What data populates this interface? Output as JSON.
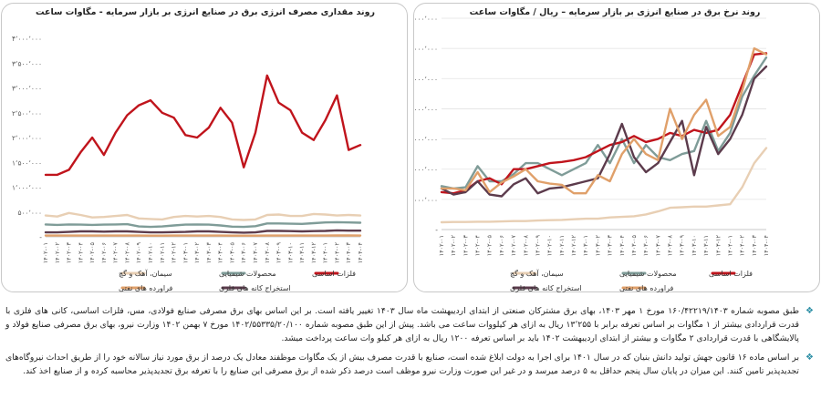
{
  "left_chart_title": "روند مقداری مصرف انرژی برق در صنایع انرژی بر بازار سرمایه  -  مگاوات ساعت",
  "right_chart_title": "روند نرخ برق در صنایع انرژی بر بازار سرمایه  – ریال / مگاوات ساعت",
  "legend_labels": {
    "cement": "سیمان، آهک و گچ",
    "chemical": "محصولات شیمیایی",
    "basic_metals": "فلزات اساسی",
    "mining": "استخراج کانه های فلزی",
    "petroleum": "فراورده های نفتی"
  },
  "colors": {
    "cement": "#e8cfb4",
    "chemical": "#7f9c98",
    "basic_metals": "#c0141c",
    "mining": "#5c3b4c",
    "petroleum": "#e0a06a"
  },
  "icons": {
    "bullet": "diamond-icon"
  },
  "bullets": [
    "طبق مصوبه شماره ۱۶۰/۴۲۲۱۹/۱۴۰۳ مورخ ۱ مهر ۱۴۰۳، بهای برق مشترکان صنعتی از ابتدای اردیبهشت ماه سال ۱۴۰۳ تغییر یافته است. بر این اساس بهای برق مصرفی صنایع فولادی، مس، فلزات اساسی، کانی های فلزی با قدرت قراردادی بیشتر از ۱ مگاوات بر اساس تعرفه برابر با ۱۳٬۲۵۵ ریال به ازای هر کیلووات ساعت می باشد. پیش از این طبق مصوبه شماره ۱۴۰۲/۵۵۳۳۵/۲۰/۱۰۰ مورخ ۷ بهمن ۱۴۰۲ وزارت نیرو، بهای برق مصرفی صنایع فولاد و پالایشگاهی با قدرت قراردادی ۲ مگاوات و بیشتر از ابتدای اردیبهشت ۱۴۰۲ باید بر اساس تعرفه ۱۲۰۰ ریال به ازای هر کیلو وات ساعت پرداخت میشد.",
    "بر اساس ماده ۱۶ قانون جهش تولید دانش بنیان که در سال ۱۴۰۱ برای اجرا به دولت ابلاغ شده است، صنایع با قدرت مصرف بیش از یک مگاوات موظفند معادل یک درصد از برق مورد نیاز سالانه خود را از طریق احداث نیروگاه‌های تجدیدپذیر تامین کنند. این میزان در پایان سال پنجم حداقل به ۵ درصد میرسد و در غیر این صورت وزارت نیرو موظف است درصد ذکر شده از برق مصرفی این صنایع را با تعرفه برق تجدیدپذیر محاسبه کرده و از صنایع اخذ کند."
  ],
  "chart_data": [
    {
      "type": "line",
      "title": "روند مقداری مصرف انرژی برق در صنایع انرژی بر بازار سرمایه  -  مگاوات ساعت",
      "x": [
        "۱۴۰۲-۰۱",
        "۱۴۰۲-۰۲",
        "۱۴۰۲-۰۳",
        "۱۴۰۲-۰۴",
        "۱۴۰۲-۰۵",
        "۱۴۰۲-۰۶",
        "۱۴۰۲-۰۷",
        "۱۴۰۲-۰۸",
        "۱۴۰۲-۰۹",
        "۱۴۰۲-۱۰",
        "۱۴۰۲-۱۱",
        "۱۴۰۲-۱۲",
        "۱۴۰۳-۰۱",
        "۱۴۰۳-۰۲",
        "۱۴۰۳-۰۳",
        "۱۴۰۳-۰۴",
        "۱۴۰۳-۰۵",
        "۱۴۰۳-۰۶",
        "۱۴۰۳-۰۷",
        "۱۴۰۳-۰۸",
        "۱۴۰۳-۰۹",
        "۱۴۰۳-۱۰",
        "۱۴۰۳-۱۱",
        "۱۴۰۳-۱۲",
        "۱۴۰۴-۰۱",
        "۱۴۰۴-۰۲",
        "۱۴۰۴-۰۳",
        "۱۴۰۴-۰۴"
      ],
      "y_ticks": [
        "-",
        "۵۰۰٬۰۰۰",
        "۱٬۰۰۰٬۰۰۰",
        "۱٬۵۰۰٬۰۰۰",
        "۲٬۰۰۰٬۰۰۰",
        "۲٬۵۰۰٬۰۰۰",
        "۳٬۰۰۰٬۰۰۰",
        "۳٬۵۰۰٬۰۰۰",
        "۴٬۰۰۰٬۰۰۰"
      ],
      "ylim": [
        0,
        4000000
      ],
      "grid": false,
      "legend_position": "bottom",
      "series": [
        {
          "key": "cement",
          "name": "سیمان، آهک و گچ",
          "values": [
            430000,
            410000,
            480000,
            440000,
            390000,
            400000,
            420000,
            440000,
            370000,
            360000,
            350000,
            400000,
            420000,
            410000,
            420000,
            400000,
            350000,
            340000,
            350000,
            440000,
            450000,
            420000,
            420000,
            460000,
            450000,
            430000,
            440000,
            430000
          ]
        },
        {
          "key": "chemical",
          "name": "محصولات شیمیایی",
          "values": [
            250000,
            240000,
            250000,
            245000,
            240000,
            245000,
            250000,
            255000,
            210000,
            200000,
            210000,
            230000,
            245000,
            250000,
            245000,
            230000,
            205000,
            200000,
            215000,
            270000,
            270000,
            265000,
            260000,
            275000,
            290000,
            295000,
            290000,
            285000
          ]
        },
        {
          "key": "basic_metals",
          "name": "فلزات اساسی",
          "values": [
            1250000,
            1250000,
            1350000,
            1700000,
            2000000,
            1650000,
            2100000,
            2450000,
            2650000,
            2750000,
            2500000,
            2400000,
            2050000,
            2000000,
            2200000,
            2600000,
            2300000,
            1400000,
            2100000,
            3250000,
            2700000,
            2550000,
            2100000,
            1950000,
            2350000,
            2850000,
            1750000,
            1850000
          ]
        },
        {
          "key": "mining",
          "name": "استخراج کانه های فلزی",
          "values": [
            90000,
            90000,
            100000,
            110000,
            110000,
            105000,
            110000,
            110000,
            100000,
            90000,
            90000,
            95000,
            100000,
            110000,
            110000,
            100000,
            90000,
            85000,
            90000,
            120000,
            120000,
            115000,
            110000,
            115000,
            120000,
            130000,
            125000,
            125000
          ]
        },
        {
          "key": "petroleum",
          "name": "فراورده های نفتی",
          "values": [
            25000,
            25000,
            25000,
            26000,
            26000,
            25000,
            25000,
            26000,
            25000,
            24000,
            24000,
            25000,
            25000,
            25000,
            25000,
            25000,
            24000,
            24000,
            24000,
            26000,
            26000,
            25000,
            25000,
            26000,
            26000,
            27000,
            27000,
            26000
          ]
        }
      ]
    },
    {
      "type": "line",
      "title": "روند نرخ برق در صنایع انرژی بر بازار سرمایه  – ریال / مگاوات ساعت",
      "x": [
        "۱۴۰۲-۰۱",
        "۱۴۰۲-۰۲",
        "۱۴۰۲-۰۳",
        "۱۴۰۲-۰۴",
        "۱۴۰۲-۰۵",
        "۱۴۰۲-۰۶",
        "۱۴۰۲-۰۷",
        "۱۴۰۲-۰۸",
        "۱۴۰۲-۰۹",
        "۱۴۰۲-۱۰",
        "۱۴۰۲-۱۱",
        "۱۴۰۲-۱۲",
        "۱۴۰۳-۰۱",
        "۱۴۰۳-۰۲",
        "۱۴۰۳-۰۳",
        "۱۴۰۳-۰۴",
        "۱۴۰۳-۰۵",
        "۱۴۰۳-۰۶",
        "۱۴۰۳-۰۷",
        "۱۴۰۳-۰۸",
        "۱۴۰۳-۰۹",
        "۱۴۰۳-۱۰",
        "۱۴۰۳-۱۱",
        "۱۴۰۳-۱۲",
        "۱۴۰۴-۰۱",
        "۱۴۰۴-۰۲",
        "۱۴۰۴-۰۳",
        "۱۴۰۴-۰۴"
      ],
      "y_ticks": [
        "-",
        "۵۰٬۰۰۰٬۰۰۰",
        "۱۰۰٬۰۰۰٬۰۰۰",
        "۱۵۰٬۰۰۰٬۰۰۰",
        "۲۰۰٬۰۰۰٬۰۰۰",
        "۲۵۰٬۰۰۰٬۰۰۰",
        "۳۰۰٬۰۰۰٬۰۰۰",
        "۳۵۰٬۰۰۰٬۰۰۰"
      ],
      "ylim": [
        0,
        350000000
      ],
      "grid": true,
      "legend_position": "bottom",
      "series": [
        {
          "key": "cement",
          "name": "سیمان، آهک و گچ",
          "values": [
            12000000,
            12500000,
            12500000,
            13000000,
            13000000,
            13500000,
            14000000,
            14000000,
            15000000,
            15500000,
            16000000,
            17000000,
            18000000,
            18000000,
            20000000,
            21000000,
            22000000,
            25000000,
            30000000,
            36000000,
            37000000,
            38000000,
            38000000,
            40000000,
            42000000,
            70000000,
            110000000,
            135000000
          ]
        },
        {
          "key": "chemical",
          "name": "محصولات شیمیایی",
          "values": [
            72000000,
            68000000,
            70000000,
            105000000,
            80000000,
            80000000,
            92000000,
            110000000,
            110000000,
            100000000,
            90000000,
            100000000,
            110000000,
            140000000,
            110000000,
            150000000,
            110000000,
            140000000,
            120000000,
            115000000,
            125000000,
            130000000,
            180000000,
            130000000,
            160000000,
            220000000,
            255000000,
            285000000
          ]
        },
        {
          "key": "basic_metals",
          "name": "فلزات اساسی",
          "values": [
            62000000,
            60000000,
            65000000,
            80000000,
            85000000,
            75000000,
            100000000,
            100000000,
            105000000,
            110000000,
            112000000,
            115000000,
            120000000,
            130000000,
            140000000,
            145000000,
            155000000,
            145000000,
            150000000,
            160000000,
            155000000,
            165000000,
            160000000,
            165000000,
            190000000,
            240000000,
            290000000,
            292000000
          ]
        },
        {
          "key": "mining",
          "name": "استخراج کانه های فلزی",
          "values": [
            68000000,
            58000000,
            62000000,
            80000000,
            58000000,
            55000000,
            75000000,
            85000000,
            60000000,
            68000000,
            70000000,
            75000000,
            80000000,
            85000000,
            125000000,
            175000000,
            120000000,
            95000000,
            110000000,
            145000000,
            180000000,
            90000000,
            170000000,
            125000000,
            150000000,
            190000000,
            250000000,
            270000000
          ]
        },
        {
          "key": "petroleum",
          "name": "فراورده های نفتی",
          "values": [
            68000000,
            68000000,
            65000000,
            95000000,
            62000000,
            78000000,
            88000000,
            100000000,
            80000000,
            76000000,
            74000000,
            60000000,
            60000000,
            90000000,
            80000000,
            125000000,
            150000000,
            125000000,
            115000000,
            200000000,
            150000000,
            190000000,
            215000000,
            155000000,
            170000000,
            230000000,
            300000000,
            290000000
          ]
        }
      ]
    }
  ]
}
